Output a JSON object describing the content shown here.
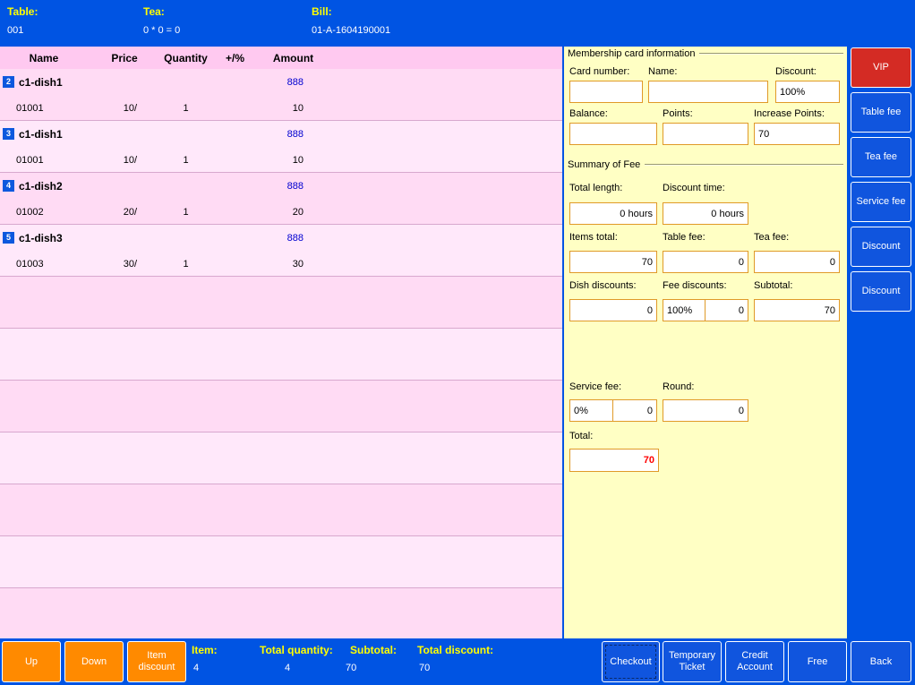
{
  "top_bar": {
    "table_label": "Table:",
    "table_value": "001",
    "tea_label": "Tea:",
    "tea_value": "0 * 0 = 0",
    "bill_label": "Bill:",
    "bill_value": "01-A-1604190001"
  },
  "order_table": {
    "headers": {
      "name": "Name",
      "price": "Price",
      "quantity": "Quantity",
      "plus_pct": "+/%",
      "amount": "Amount"
    },
    "rows": [
      {
        "index": "2",
        "name": "c1-dish1",
        "tag": "888",
        "code": "01001",
        "price": "10/",
        "quantity": "1",
        "amount": "10"
      },
      {
        "index": "3",
        "name": "c1-dish1",
        "tag": "888",
        "code": "01001",
        "price": "10/",
        "quantity": "1",
        "amount": "10"
      },
      {
        "index": "4",
        "name": "c1-dish2",
        "tag": "888",
        "code": "01002",
        "price": "20/",
        "quantity": "1",
        "amount": "20"
      },
      {
        "index": "5",
        "name": "c1-dish3",
        "tag": "888",
        "code": "01003",
        "price": "30/",
        "quantity": "1",
        "amount": "30"
      }
    ],
    "empty_row_count": 7
  },
  "membership": {
    "group_title": "Membership card information",
    "card_number_label": "Card number:",
    "card_number_value": "",
    "name_label": "Name:",
    "name_value": "",
    "discount_label": "Discount:",
    "discount_value": "100%",
    "balance_label": "Balance:",
    "balance_value": "",
    "points_label": "Points:",
    "points_value": "",
    "increase_points_label": "Increase Points:",
    "increase_points_value": "70"
  },
  "summary": {
    "group_title": "Summary of Fee",
    "total_length_label": "Total length:",
    "total_length_value": "0 hours",
    "discount_time_label": "Discount time:",
    "discount_time_value": "0 hours",
    "items_total_label": "Items total:",
    "items_total_value": "70",
    "table_fee_label": "Table fee:",
    "table_fee_value": "0",
    "tea_fee_label": "Tea fee:",
    "tea_fee_value": "0",
    "dish_discounts_label": "Dish discounts:",
    "dish_discounts_value": "0",
    "fee_discounts_label": "Fee discounts:",
    "fee_discounts_pct": "100%",
    "fee_discounts_value": "0",
    "subtotal_label": "Subtotal:",
    "subtotal_value": "70",
    "service_fee_label": "Service fee:",
    "service_fee_pct": "0%",
    "service_fee_value": "0",
    "round_label": "Round:",
    "round_value": "0",
    "total_label": "Total:",
    "total_value": "70"
  },
  "side_buttons": [
    {
      "label": "VIP"
    },
    {
      "label": "Table fee"
    },
    {
      "label": "Tea fee"
    },
    {
      "label": "Service fee"
    },
    {
      "label": "Discount"
    },
    {
      "label": "Discount"
    }
  ],
  "bottom_bar": {
    "up": "Up",
    "down": "Down",
    "item_discount": "Item discount",
    "item_label": "Item:",
    "item_value": "4",
    "total_quantity_label": "Total quantity:",
    "total_quantity_value": "4",
    "subtotal_label": "Subtotal:",
    "subtotal_value": "70",
    "total_discount_label": "Total discount:",
    "total_discount_value": "70",
    "checkout": "Checkout",
    "temporary_ticket": "Temporary Ticket",
    "credit_account": "Credit Account",
    "free": "Free",
    "back": "Back"
  },
  "colors": {
    "bar_blue": "#0054E3",
    "button_blue": "#1055DE",
    "button_orange": "#FF8A00",
    "vip_red": "#D42B24",
    "table_pink": "#FFDFF8",
    "header_pink": "#FFC9F0",
    "panel_yellow": "#FFFFC4",
    "input_border": "#E09A28",
    "total_red": "#FF0000",
    "tag_blue": "#0000D0",
    "label_yellow": "#FFFF00"
  }
}
